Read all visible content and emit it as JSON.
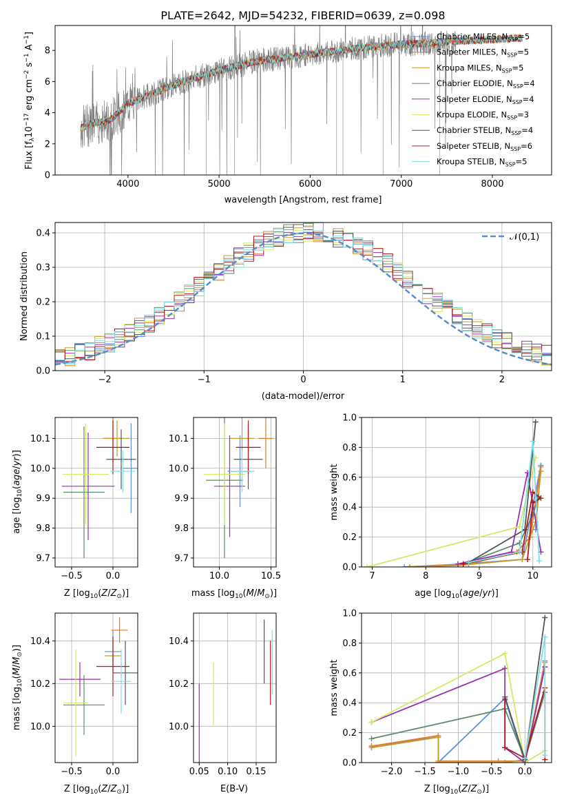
{
  "figure_title": "PLATE=2642, MJD=54232, FIBERID=0639, z=0.098",
  "series_names": [
    "Chabrier MILES, N_SSP=5",
    "Salpeter MILES, N_SSP=5",
    "Kroupa MILES, N_SSP=5",
    "Chabrier ELODIE, N_SSP=4",
    "Salpeter ELODIE, N_SSP=4",
    "Kroupa ELODIE, N_SSP=3",
    "Chabrier STELIB, N_SSP=4",
    "Salpeter STELIB, N_SSP=6",
    "Kroupa STELIB, N_SSP=5"
  ],
  "legend_labels": [
    {
      "base": "Chabrier MILES, N",
      "sub": "SSP",
      "tail": "=5"
    },
    {
      "base": "Salpeter MILES, N",
      "sub": "SSP",
      "tail": "=5"
    },
    {
      "base": "Kroupa MILES, N",
      "sub": "SSP",
      "tail": "=5"
    },
    {
      "base": "Chabrier ELODIE, N",
      "sub": "SSP",
      "tail": "=4"
    },
    {
      "base": "Salpeter ELODIE, N",
      "sub": "SSP",
      "tail": "=4"
    },
    {
      "base": "Kroupa ELODIE, N",
      "sub": "SSP",
      "tail": "=3"
    },
    {
      "base": "Chabrier STELIB, N",
      "sub": "SSP",
      "tail": "=4"
    },
    {
      "base": "Salpeter STELIB, N",
      "sub": "SSP",
      "tail": "=6"
    },
    {
      "base": "Kroupa STELIB, N",
      "sub": "SSP",
      "tail": "=5"
    }
  ],
  "colors": [
    "#5b8fe0",
    "#e07b2a",
    "#c79a2a",
    "#5c8a6a",
    "#9a2fb0",
    "#d4e866",
    "#555555",
    "#b01818",
    "#7fdfe0"
  ],
  "data_color": "#808080",
  "gaussian_color": "#5b8ad0",
  "chart_data": [
    {
      "id": "spectrum",
      "type": "line",
      "xlabel": "wavelength [Angstrom, rest frame]",
      "ylabel": "Flux [f_λ 10^-17 erg cm^-2 s^-1 A^-1]",
      "xlim": [
        3200,
        8650
      ],
      "ylim": [
        0,
        9.6
      ],
      "xticks": [
        4000,
        5000,
        6000,
        7000,
        8000
      ],
      "yticks": [
        0,
        2,
        4,
        6,
        8
      ],
      "grid": false,
      "legend": "right",
      "continuum": {
        "x": [
          3480,
          3600,
          3800,
          4000,
          4300,
          4600,
          5000,
          5400,
          5800,
          6200,
          6600,
          7000,
          7400,
          7600,
          8000,
          8300
        ],
        "y": [
          3.0,
          3.3,
          3.5,
          4.6,
          5.3,
          6.0,
          6.7,
          7.3,
          7.6,
          7.9,
          8.2,
          8.4,
          8.5,
          8.6,
          8.7,
          8.8
        ]
      }
    },
    {
      "id": "residuals",
      "type": "histogram",
      "xlabel": "(data-model)/error",
      "ylabel": "Normed distribution",
      "xlim": [
        -2.5,
        2.5
      ],
      "ylim": [
        0,
        0.43
      ],
      "xticks": [
        -2,
        -1,
        0,
        1,
        2
      ],
      "yticks": [
        0.0,
        0.1,
        0.2,
        0.3,
        0.4
      ],
      "grid": true,
      "legend": "top-right",
      "gaussian_label": "𝒩(0,1)",
      "gaussian": {
        "mean": 0,
        "sigma": 1
      },
      "bin_width": 0.1
    },
    {
      "id": "age_vs_Z",
      "type": "scatter",
      "xlabel": "Z [log10(Z/Z⊙)]",
      "ylabel": "age  [log10(age/yr)]",
      "xlim": [
        -0.7,
        0.3
      ],
      "ylim": [
        9.67,
        10.17
      ],
      "xticks": [
        -0.5,
        0.0
      ],
      "yticks": [
        9.7,
        9.8,
        9.9,
        10.0,
        10.1
      ],
      "grid": true,
      "points": [
        {
          "x": 0.22,
          "y": 10.0,
          "xerr": 0.1,
          "yerr": 0.15
        },
        {
          "x": 0.0,
          "y": 10.1,
          "xerr": 0.12,
          "yerr": 0.08
        },
        {
          "x": 0.05,
          "y": 10.1,
          "xerr": 0.15,
          "yerr": 0.06
        },
        {
          "x": -0.35,
          "y": 9.92,
          "xerr": 0.25,
          "yerr": 0.22
        },
        {
          "x": -0.3,
          "y": 9.94,
          "xerr": 0.32,
          "yerr": 0.18
        },
        {
          "x": -0.33,
          "y": 9.98,
          "xerr": 0.28,
          "yerr": 0.17
        },
        {
          "x": 0.1,
          "y": 10.03,
          "xerr": 0.18,
          "yerr": 0.1
        },
        {
          "x": 0.0,
          "y": 10.07,
          "xerr": 0.2,
          "yerr": 0.09
        },
        {
          "x": 0.12,
          "y": 9.99,
          "xerr": 0.15,
          "yerr": 0.07
        }
      ]
    },
    {
      "id": "age_vs_mass",
      "type": "scatter",
      "xlabel": "mass [log10(M/M⊙)]",
      "ylabel": "",
      "xlim": [
        9.75,
        10.55
      ],
      "ylim": [
        9.67,
        10.17
      ],
      "xticks": [
        10.0,
        10.5
      ],
      "yticks": [
        9.7,
        9.8,
        9.9,
        10.0,
        10.1
      ],
      "grid": true,
      "points": [
        {
          "x": 10.2,
          "y": 9.99,
          "xerr": 0.12,
          "yerr": 0.12
        },
        {
          "x": 10.45,
          "y": 10.1,
          "xerr": 0.07,
          "yerr": 0.1
        },
        {
          "x": 10.22,
          "y": 10.1,
          "xerr": 0.12,
          "yerr": 0.07
        },
        {
          "x": 10.05,
          "y": 9.96,
          "xerr": 0.18,
          "yerr": 0.26
        },
        {
          "x": 10.1,
          "y": 9.94,
          "xerr": 0.15,
          "yerr": 0.17
        },
        {
          "x": 10.05,
          "y": 9.98,
          "xerr": 0.2,
          "yerr": 0.17
        },
        {
          "x": 10.28,
          "y": 10.03,
          "xerr": 0.14,
          "yerr": 0.1
        },
        {
          "x": 10.28,
          "y": 10.07,
          "xerr": 0.12,
          "yerr": 0.09
        },
        {
          "x": 10.22,
          "y": 9.99,
          "xerr": 0.12,
          "yerr": 0.07
        }
      ]
    },
    {
      "id": "weight_vs_age",
      "type": "line",
      "xlabel": "age  [log10(age/yr)]",
      "ylabel": "mass weight",
      "xlim": [
        6.8,
        10.35
      ],
      "ylim": [
        0,
        1.0
      ],
      "xticks": [
        7,
        8,
        9,
        10
      ],
      "yticks": [
        0.0,
        0.2,
        0.4,
        0.6,
        0.8,
        1.0
      ],
      "grid": true,
      "series": [
        {
          "x": [
            7.6,
            8.7,
            9.8,
            10.15,
            10.05
          ],
          "y": [
            0.0,
            0.02,
            0.05,
            0.68,
            0.25
          ]
        },
        {
          "x": [
            7.7,
            8.8,
            9.7,
            9.95,
            10.15
          ],
          "y": [
            0.0,
            0.02,
            0.1,
            0.2,
            0.67
          ]
        },
        {
          "x": [
            7.7,
            8.6,
            9.8,
            10.05,
            10.15
          ],
          "y": [
            0.0,
            0.01,
            0.05,
            0.3,
            0.64
          ]
        },
        {
          "x": [
            8.7,
            9.75,
            10.0,
            10.1
          ],
          "y": [
            0.02,
            0.16,
            0.35,
            0.47
          ]
        },
        {
          "x": [
            8.6,
            9.6,
            9.9,
            10.15
          ],
          "y": [
            0.02,
            0.1,
            0.63,
            0.1
          ]
        },
        {
          "x": [
            6.9,
            9.75,
            10.05
          ],
          "y": [
            0.0,
            0.27,
            0.73
          ]
        },
        {
          "x": [
            8.8,
            9.85,
            10.05
          ],
          "y": [
            0.03,
            0.25,
            0.97
          ]
        },
        {
          "x": [
            8.7,
            9.8,
            10.0,
            10.15,
            10.0,
            9.9
          ],
          "y": [
            0.02,
            0.1,
            0.5,
            0.46,
            0.43,
            0.05
          ]
        },
        {
          "x": [
            8.8,
            9.75,
            10.0,
            10.12
          ],
          "y": [
            0.03,
            0.1,
            0.84,
            0.04
          ]
        }
      ]
    },
    {
      "id": "mass_vs_Z",
      "type": "scatter",
      "xlabel": "Z [log10(Z/Z⊙)]",
      "ylabel": "mass [log10(M/M⊙)]",
      "xlim": [
        -0.7,
        0.3
      ],
      "ylim": [
        9.83,
        10.53
      ],
      "xticks": [
        -0.5,
        0.0
      ],
      "yticks": [
        10.0,
        10.2,
        10.4
      ],
      "grid": true,
      "points": [
        {
          "x": 0.0,
          "y": 10.35,
          "xerr": 0.1,
          "yerr": 0.1
        },
        {
          "x": 0.08,
          "y": 10.45,
          "xerr": 0.1,
          "yerr": 0.06
        },
        {
          "x": 0.0,
          "y": 10.33,
          "xerr": 0.1,
          "yerr": 0.07
        },
        {
          "x": -0.35,
          "y": 10.1,
          "xerr": 0.25,
          "yerr": 0.14
        },
        {
          "x": -0.4,
          "y": 10.22,
          "xerr": 0.25,
          "yerr": 0.08
        },
        {
          "x": -0.45,
          "y": 10.11,
          "xerr": 0.15,
          "yerr": 0.25
        },
        {
          "x": 0.15,
          "y": 10.25,
          "xerr": 0.15,
          "yerr": 0.15
        },
        {
          "x": 0.0,
          "y": 10.28,
          "xerr": 0.2,
          "yerr": 0.14
        },
        {
          "x": 0.1,
          "y": 10.21,
          "xerr": 0.12,
          "yerr": 0.15
        }
      ]
    },
    {
      "id": "mass_vs_EBV",
      "type": "scatter",
      "xlabel": "E(B-V)",
      "ylabel": "",
      "xlim": [
        0.04,
        0.185
      ],
      "ylim": [
        9.83,
        10.53
      ],
      "xticks": [
        0.05,
        0.1,
        0.15
      ],
      "yticks": [
        10.0,
        10.2,
        10.4
      ],
      "grid": true,
      "points": [
        {
          "x": 0.05,
          "y": 10.0,
          "xerr": 0,
          "yerr": 0.2
        },
        {
          "x": 0.075,
          "y": 10.15,
          "xerr": 0,
          "yerr": 0.15
        },
        {
          "x": 0.164,
          "y": 10.35,
          "xerr": 0,
          "yerr": 0.15
        },
        {
          "x": 0.175,
          "y": 10.25,
          "xerr": 0,
          "yerr": 0.15
        },
        {
          "x": 0.178,
          "y": 10.3,
          "xerr": 0,
          "yerr": 0.15
        }
      ]
    },
    {
      "id": "weight_vs_Z",
      "type": "line",
      "xlabel": "Z [log10(Z/Z⊙)]",
      "ylabel": "mass weight",
      "xlim": [
        -2.45,
        0.4
      ],
      "ylim": [
        0,
        1.0
      ],
      "xticks": [
        -2.0,
        -1.5,
        -1.0,
        -0.5,
        0.0
      ],
      "yticks": [
        0.0,
        0.2,
        0.4,
        0.6,
        0.8,
        1.0
      ],
      "grid": true,
      "series": [
        {
          "x": [
            -2.3,
            -1.3,
            -1.3,
            -0.3,
            0.0,
            0.3
          ],
          "y": [
            0.11,
            0.17,
            0.0,
            0.43,
            0.0,
            0.68
          ]
        },
        {
          "x": [
            -2.3,
            -1.3,
            -1.3,
            -0.4,
            0.0,
            0.3
          ],
          "y": [
            0.11,
            0.18,
            0.01,
            0.01,
            0.01,
            0.67
          ]
        },
        {
          "x": [
            -2.3,
            -1.3,
            -1.3,
            -0.3,
            0.0,
            0.3
          ],
          "y": [
            0.1,
            0.17,
            0.0,
            0.0,
            0.02,
            0.64
          ]
        },
        {
          "x": [
            -2.3,
            -0.3,
            0.0,
            0.3
          ],
          "y": [
            0.16,
            0.36,
            0.02,
            0.47
          ]
        },
        {
          "x": [
            -2.3,
            -0.3,
            -0.3,
            0.0,
            0.3
          ],
          "y": [
            0.27,
            0.63,
            0.1,
            0.0,
            0.64
          ]
        },
        {
          "x": [
            -2.3,
            -0.3,
            0.0,
            0.3
          ],
          "y": [
            0.27,
            0.73,
            0.0,
            0.08
          ]
        },
        {
          "x": [
            -0.3,
            0.0,
            0.3
          ],
          "y": [
            0.44,
            0.02,
            0.97
          ]
        },
        {
          "x": [
            -0.3,
            -0.3,
            0.0,
            0.3,
            0.3
          ],
          "y": [
            0.42,
            0.1,
            0.03,
            0.5,
            0.02
          ]
        },
        {
          "x": [
            0.0,
            0.3,
            0.3
          ],
          "y": [
            0.03,
            0.84,
            0.05
          ]
        }
      ]
    }
  ]
}
